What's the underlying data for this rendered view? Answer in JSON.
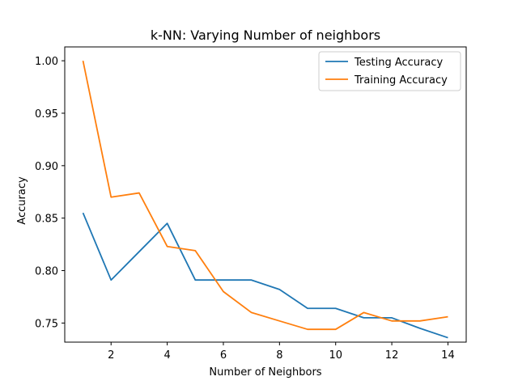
{
  "chart_data": {
    "type": "line",
    "title": "k-NN: Varying Number of neighbors",
    "xlabel": "Number of Neighbors",
    "ylabel": "Accuracy",
    "xlim": [
      0.35,
      14.65
    ],
    "ylim": [
      0.7318,
      1.0132
    ],
    "x_ticks": [
      2,
      4,
      6,
      8,
      10,
      12,
      14
    ],
    "y_ticks": [
      0.75,
      0.8,
      0.85,
      0.9,
      0.95,
      1.0
    ],
    "y_tick_labels": [
      "0.75",
      "0.80",
      "0.85",
      "0.90",
      "0.95",
      "1.00"
    ],
    "grid": false,
    "legend_position": "top-right",
    "x": [
      1,
      2,
      3,
      4,
      5,
      6,
      7,
      8,
      9,
      10,
      11,
      12,
      13,
      14
    ],
    "series": [
      {
        "name": "Testing Accuracy",
        "color": "#1f77b4",
        "values": [
          0.855,
          0.791,
          0.818,
          0.845,
          0.791,
          0.791,
          0.791,
          0.782,
          0.764,
          0.764,
          0.755,
          0.755,
          0.745,
          0.736
        ]
      },
      {
        "name": "Training Accuracy",
        "color": "#ff7f0e",
        "values": [
          1.0,
          0.87,
          0.874,
          0.823,
          0.819,
          0.78,
          0.76,
          0.752,
          0.744,
          0.744,
          0.76,
          0.752,
          0.752,
          0.756
        ]
      }
    ]
  }
}
